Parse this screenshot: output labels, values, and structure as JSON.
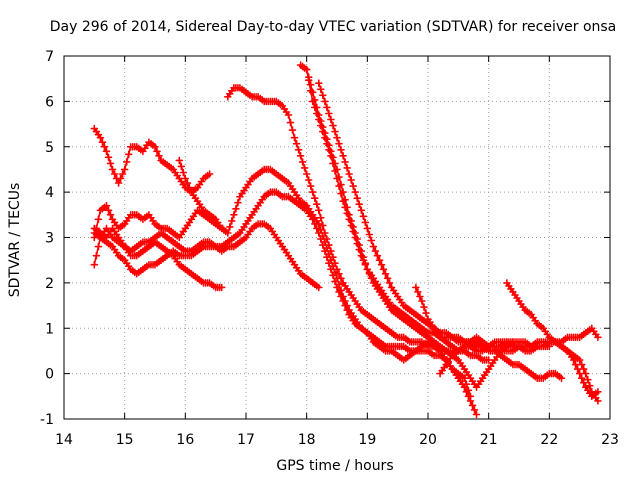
{
  "chart_data": {
    "type": "scatter",
    "title": "Day 296 of 2014, Sidereal Day-to-day VTEC variation (SDTVAR) for receiver onsa",
    "xlabel": "GPS time / hours",
    "ylabel": "SDTVAR / TECUs",
    "xlim": [
      14,
      23
    ],
    "ylim": [
      -1,
      7
    ],
    "xticks": [
      "14",
      "15",
      "16",
      "17",
      "18",
      "19",
      "20",
      "21",
      "22",
      "23"
    ],
    "yticks": [
      "-1",
      "0",
      "1",
      "2",
      "3",
      "4",
      "5",
      "6",
      "7"
    ],
    "grid": true,
    "marker": "plus",
    "color": "#ff0000",
    "series": [
      {
        "name": "s1",
        "x": [
          14.5,
          14.6,
          14.7,
          14.8,
          14.9,
          15.0,
          15.1,
          15.2,
          15.3,
          15.4,
          15.5,
          15.6,
          15.7,
          15.8,
          15.9,
          16.0,
          16.1,
          16.2,
          16.3,
          16.4
        ],
        "y": [
          5.4,
          5.2,
          4.9,
          4.5,
          4.2,
          4.5,
          5.0,
          5.0,
          4.9,
          5.1,
          5.0,
          4.7,
          4.6,
          4.5,
          4.3,
          4.1,
          4.0,
          4.1,
          4.3,
          4.4
        ]
      },
      {
        "name": "s2",
        "x": [
          14.5,
          14.6,
          14.7,
          14.8,
          14.9,
          15.0,
          15.1,
          15.2,
          15.3,
          15.4,
          15.5,
          15.6,
          15.7,
          15.8,
          15.9,
          16.0,
          16.1,
          16.2,
          16.3,
          16.4,
          16.5,
          16.6
        ],
        "y": [
          3.0,
          3.6,
          3.7,
          3.4,
          3.2,
          3.3,
          3.5,
          3.5,
          3.4,
          3.5,
          3.3,
          3.2,
          3.2,
          3.1,
          3.0,
          3.2,
          3.4,
          3.6,
          3.5,
          3.4,
          3.3,
          3.2
        ]
      },
      {
        "name": "s3",
        "x": [
          14.5,
          14.6,
          14.7,
          14.8,
          14.9,
          15.0,
          15.1,
          15.2,
          15.3,
          15.4,
          15.5,
          15.6,
          15.7,
          15.8,
          15.9,
          16.0,
          16.1,
          16.2,
          16.3,
          16.4,
          16.5,
          16.6
        ],
        "y": [
          3.2,
          3.1,
          3.0,
          3.2,
          3.0,
          2.8,
          2.6,
          2.6,
          2.7,
          2.8,
          2.9,
          2.8,
          2.7,
          2.6,
          2.4,
          2.3,
          2.2,
          2.1,
          2.0,
          2.0,
          1.9,
          1.9
        ]
      },
      {
        "name": "s4",
        "x": [
          14.5,
          14.6,
          14.7,
          14.8,
          14.9,
          15.0,
          15.1,
          15.2,
          15.3,
          15.4,
          15.5,
          15.6,
          15.7,
          15.8,
          15.9,
          16.0,
          16.1,
          16.2,
          16.3,
          16.4,
          16.5,
          16.6,
          16.7,
          16.8,
          16.9,
          17.0,
          17.1,
          17.2,
          17.3,
          17.4,
          17.5,
          17.6,
          17.7,
          17.8,
          17.9,
          18.0,
          18.1,
          18.2
        ],
        "y": [
          3.1,
          3.0,
          2.9,
          2.8,
          2.6,
          2.5,
          2.3,
          2.2,
          2.3,
          2.4,
          2.4,
          2.5,
          2.6,
          2.7,
          2.6,
          2.6,
          2.6,
          2.7,
          2.8,
          2.8,
          2.8,
          2.7,
          2.8,
          2.8,
          2.9,
          3.0,
          3.2,
          3.3,
          3.3,
          3.2,
          3.0,
          2.8,
          2.6,
          2.4,
          2.2,
          2.1,
          2.0,
          1.9
        ]
      },
      {
        "name": "s5",
        "x": [
          14.5,
          14.6,
          14.7,
          14.8,
          14.9,
          15.0,
          15.1,
          15.2,
          15.3,
          15.4,
          15.5,
          15.6,
          15.7,
          15.8,
          15.9,
          16.0,
          16.1,
          16.2,
          16.3,
          16.4,
          16.5,
          16.6,
          16.7,
          16.8,
          16.9,
          17.0,
          17.1,
          17.2,
          17.3,
          17.4,
          17.5,
          17.6,
          17.7,
          17.8,
          17.9,
          18.0,
          18.1,
          18.2,
          18.3,
          18.4,
          18.5,
          18.6,
          18.7,
          18.8,
          18.9,
          19.0,
          19.1,
          19.2,
          19.3,
          19.4,
          19.5,
          19.6,
          19.7,
          19.8,
          19.9,
          20.0,
          20.1,
          20.2,
          20.3,
          20.4,
          20.5,
          20.6,
          20.7
        ],
        "y": [
          2.4,
          3.0,
          3.2,
          3.0,
          2.9,
          2.8,
          2.7,
          2.8,
          2.9,
          2.9,
          3.0,
          3.1,
          3.0,
          2.9,
          2.8,
          2.7,
          2.7,
          2.8,
          2.9,
          2.9,
          2.8,
          2.8,
          2.9,
          3.0,
          3.1,
          3.3,
          3.5,
          3.7,
          3.9,
          4.0,
          4.0,
          3.9,
          3.9,
          3.8,
          3.7,
          3.6,
          3.4,
          3.1,
          2.7,
          2.3,
          1.9,
          1.6,
          1.3,
          1.1,
          1.0,
          0.9,
          0.8,
          0.7,
          0.6,
          0.6,
          0.6,
          0.6,
          0.5,
          0.5,
          0.5,
          0.5,
          0.4,
          0.4,
          0.3,
          0.1,
          0.0,
          -0.1,
          -0.5
        ]
      },
      {
        "name": "s6",
        "x": [
          15.9,
          16.0,
          16.1,
          16.2,
          16.3,
          16.4,
          16.5,
          16.6,
          16.7,
          16.8,
          16.9,
          17.0,
          17.1,
          17.2,
          17.3,
          17.4,
          17.5,
          17.6,
          17.7,
          17.8,
          17.9,
          18.0,
          18.1,
          18.2,
          18.3,
          18.4,
          18.5,
          18.6,
          18.7,
          18.8,
          18.9,
          19.0,
          19.1,
          19.2,
          19.3,
          19.4,
          19.5,
          19.6,
          19.7,
          19.8,
          19.9,
          20.0,
          20.1,
          20.2,
          20.3,
          20.4,
          20.5,
          20.6,
          20.7,
          20.8
        ],
        "y": [
          4.7,
          4.3,
          4.0,
          3.8,
          3.6,
          3.5,
          3.4,
          3.2,
          3.1,
          3.5,
          3.9,
          4.1,
          4.3,
          4.4,
          4.5,
          4.5,
          4.4,
          4.3,
          4.2,
          4.0,
          3.8,
          3.7,
          3.5,
          3.3,
          2.9,
          2.5,
          2.1,
          1.7,
          1.4,
          1.2,
          1.0,
          0.9,
          0.7,
          0.6,
          0.5,
          0.5,
          0.4,
          0.3,
          0.4,
          0.5,
          0.6,
          0.7,
          0.6,
          0.5,
          0.3,
          0.1,
          -0.1,
          -0.3,
          -0.6,
          -0.9
        ]
      },
      {
        "name": "s7",
        "x": [
          16.7,
          16.8,
          16.9,
          17.0,
          17.1,
          17.2,
          17.3,
          17.4,
          17.5,
          17.6,
          17.7,
          17.8,
          17.9,
          18.0,
          18.1,
          18.2,
          18.3,
          18.4,
          18.5,
          18.6,
          18.7,
          18.8,
          18.9,
          19.0,
          19.1,
          19.2,
          19.3,
          19.4,
          19.5,
          19.6,
          19.7,
          19.8,
          19.9,
          20.0,
          20.1,
          20.2,
          20.3,
          20.4,
          20.5,
          20.6,
          20.7,
          20.8,
          20.9,
          21.0,
          21.1,
          21.2,
          21.3,
          21.4,
          21.5,
          21.6,
          21.7,
          21.8,
          21.9,
          22.0
        ],
        "y": [
          6.1,
          6.3,
          6.3,
          6.2,
          6.1,
          6.1,
          6.0,
          6.0,
          6.0,
          5.9,
          5.7,
          5.2,
          4.8,
          4.4,
          4.0,
          3.6,
          3.1,
          2.7,
          2.3,
          2.0,
          1.8,
          1.6,
          1.4,
          1.3,
          1.2,
          1.1,
          1.0,
          0.9,
          0.8,
          0.8,
          0.7,
          0.7,
          0.7,
          0.6,
          0.6,
          0.5,
          0.5,
          0.5,
          0.5,
          0.6,
          0.6,
          0.5,
          0.5,
          0.6,
          0.6,
          0.6,
          0.7,
          0.7,
          0.7,
          0.7,
          0.6,
          0.6,
          0.6,
          0.6
        ]
      },
      {
        "name": "s8",
        "x": [
          17.9,
          18.0,
          18.1,
          18.2,
          18.3,
          18.4,
          18.5,
          18.6,
          18.7,
          18.8,
          18.9,
          19.0,
          19.1,
          19.2,
          19.3,
          19.4,
          19.5,
          19.6,
          19.7,
          19.8,
          19.9,
          20.0,
          20.1,
          20.2,
          20.3,
          20.4,
          20.5,
          20.6,
          20.7,
          20.8,
          20.9,
          21.0,
          21.1,
          21.2,
          21.3,
          21.4,
          21.5,
          21.6,
          21.7,
          21.8,
          21.9,
          22.0,
          22.1,
          22.2,
          22.3,
          22.4,
          22.5,
          22.6,
          22.7,
          22.8
        ],
        "y": [
          6.8,
          6.7,
          6.0,
          5.6,
          5.2,
          4.8,
          4.3,
          3.8,
          3.4,
          3.0,
          2.6,
          2.3,
          2.1,
          1.9,
          1.7,
          1.5,
          1.4,
          1.3,
          1.2,
          1.1,
          1.0,
          0.9,
          0.9,
          0.8,
          0.8,
          0.8,
          0.7,
          0.7,
          0.7,
          0.6,
          0.6,
          0.5,
          0.5,
          0.5,
          0.5,
          0.5,
          0.6,
          0.5,
          0.5,
          0.6,
          0.6,
          0.7,
          0.7,
          0.6,
          0.5,
          0.4,
          0.3,
          0.0,
          -0.4,
          -0.6
        ]
      },
      {
        "name": "s9",
        "x": [
          18.0,
          18.1,
          18.2,
          18.3,
          18.4,
          18.5,
          18.6,
          18.7,
          18.8,
          18.9,
          19.0,
          19.1,
          19.2,
          19.3,
          19.4,
          19.5,
          19.6,
          19.7,
          19.8,
          19.9,
          20.0,
          20.1,
          20.2,
          20.3,
          20.4,
          20.5,
          20.6,
          20.7,
          20.8,
          20.9,
          21.0,
          21.1,
          21.2,
          21.3,
          21.4
        ],
        "y": [
          6.7,
          6.2,
          5.7,
          5.3,
          4.9,
          4.5,
          4.0,
          3.5,
          3.1,
          2.7,
          2.3,
          2.0,
          1.8,
          1.6,
          1.4,
          1.3,
          1.2,
          1.1,
          1.0,
          0.9,
          0.8,
          0.7,
          0.6,
          0.5,
          0.4,
          0.3,
          0.1,
          -0.1,
          -0.3,
          -0.1,
          0.1,
          0.3,
          0.5,
          0.6,
          0.7
        ]
      },
      {
        "name": "s10",
        "x": [
          18.2,
          18.3,
          18.4,
          18.5,
          18.6,
          18.7,
          18.8,
          18.9,
          19.0,
          19.1,
          19.2,
          19.3,
          19.4,
          19.5,
          19.6,
          19.7,
          19.8,
          19.9,
          20.0,
          20.1,
          20.2,
          20.3,
          20.4,
          20.5,
          20.6,
          20.7,
          20.8,
          20.9,
          21.0,
          21.1,
          21.2,
          21.3,
          21.4,
          21.5,
          21.6,
          21.7,
          21.8,
          21.9,
          22.0,
          22.1,
          22.2,
          22.3,
          22.4,
          22.5,
          22.6,
          22.7,
          22.8
        ],
        "y": [
          6.4,
          6.0,
          5.6,
          5.2,
          4.8,
          4.4,
          4.0,
          3.6,
          3.2,
          2.8,
          2.5,
          2.2,
          1.9,
          1.7,
          1.5,
          1.4,
          1.3,
          1.2,
          1.1,
          1.0,
          0.9,
          0.9,
          0.8,
          0.8,
          0.7,
          0.7,
          0.7,
          0.6,
          0.6,
          0.7,
          0.7,
          0.7,
          0.6,
          0.6,
          0.6,
          0.6,
          0.7,
          0.7,
          0.7,
          0.7,
          0.7,
          0.8,
          0.8,
          0.8,
          0.9,
          1.0,
          0.8
        ]
      },
      {
        "name": "s11",
        "x": [
          19.8,
          19.9,
          20.0,
          20.1,
          20.2,
          20.3,
          20.4,
          20.5,
          20.6,
          20.7,
          20.8,
          20.9,
          21.0
        ],
        "y": [
          1.9,
          1.6,
          1.2,
          1.0,
          0.8,
          0.7,
          0.6,
          0.5,
          0.5,
          0.4,
          0.4,
          0.3,
          0.3
        ]
      },
      {
        "name": "s12",
        "x": [
          20.2,
          20.3,
          20.4,
          20.5,
          20.6,
          20.7,
          20.8,
          20.9,
          21.0,
          21.1,
          21.2,
          21.3,
          21.4,
          21.5,
          21.6,
          21.7,
          21.8,
          21.9,
          22.0,
          22.1,
          22.2
        ],
        "y": [
          0.0,
          0.2,
          0.4,
          0.5,
          0.6,
          0.7,
          0.8,
          0.7,
          0.6,
          0.6,
          0.4,
          0.3,
          0.2,
          0.2,
          0.1,
          0.0,
          -0.1,
          -0.1,
          0.0,
          0.0,
          -0.1
        ]
      },
      {
        "name": "s13",
        "x": [
          21.3,
          21.4,
          21.5,
          21.6,
          21.7,
          21.8,
          21.9,
          22.0,
          22.1,
          22.2,
          22.3,
          22.4,
          22.5,
          22.6,
          22.7,
          22.8
        ],
        "y": [
          2.0,
          1.8,
          1.6,
          1.4,
          1.3,
          1.1,
          1.0,
          0.8,
          0.7,
          0.6,
          0.5,
          0.3,
          0.0,
          -0.3,
          -0.5,
          -0.4
        ]
      }
    ]
  }
}
